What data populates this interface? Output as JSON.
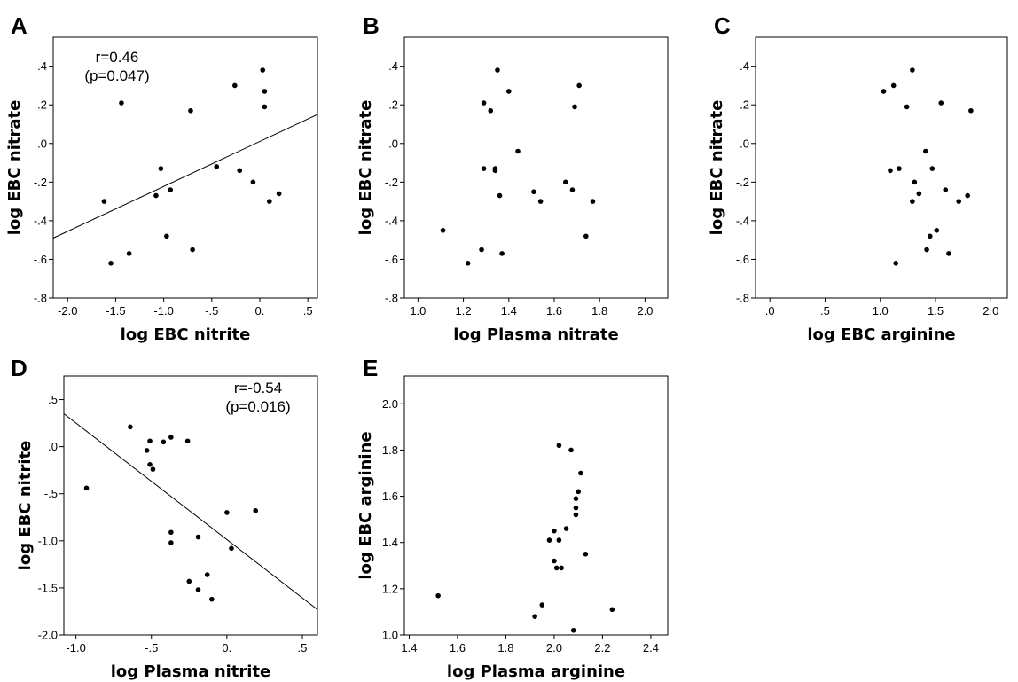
{
  "chart_data": [
    {
      "panel": "A",
      "type": "scatter",
      "xlabel": "log EBC nitrite",
      "ylabel": "log EBC nitrate",
      "xlim": [
        -2.15,
        0.6
      ],
      "ylim": [
        -0.8,
        0.55
      ],
      "xticks": [
        {
          "v": -2.0,
          "label": "-2.0"
        },
        {
          "v": -1.5,
          "label": "-1.5"
        },
        {
          "v": -1.0,
          "label": "-1.0"
        },
        {
          "v": -0.5,
          "label": "-.5"
        },
        {
          "v": 0.0,
          "label": "0."
        },
        {
          "v": 0.5,
          "label": ".5"
        }
      ],
      "yticks": [
        {
          "v": -0.8,
          "label": "-.8"
        },
        {
          "v": -0.6,
          "label": "-.6"
        },
        {
          "v": -0.4,
          "label": "-.4"
        },
        {
          "v": -0.2,
          "label": "-.2"
        },
        {
          "v": 0.0,
          "label": ".0"
        },
        {
          "v": 0.2,
          "label": ".2"
        },
        {
          "v": 0.4,
          "label": ".4"
        }
      ],
      "points": [
        [
          -1.44,
          0.21
        ],
        [
          -1.62,
          -0.3
        ],
        [
          -1.55,
          -0.62
        ],
        [
          -1.36,
          -0.57
        ],
        [
          -1.08,
          -0.27
        ],
        [
          -1.03,
          -0.13
        ],
        [
          -0.97,
          -0.48
        ],
        [
          -0.93,
          -0.24
        ],
        [
          -0.72,
          0.17
        ],
        [
          -0.7,
          -0.55
        ],
        [
          -0.45,
          -0.12
        ],
        [
          -0.26,
          0.3
        ],
        [
          -0.21,
          -0.14
        ],
        [
          -0.07,
          -0.2
        ],
        [
          0.03,
          0.38
        ],
        [
          0.05,
          0.27
        ],
        [
          0.05,
          0.19
        ],
        [
          0.1,
          -0.3
        ],
        [
          0.2,
          -0.26
        ]
      ],
      "fit_line": [
        [
          -2.15,
          -0.49
        ],
        [
          0.6,
          0.15
        ]
      ],
      "annotation": [
        "r=0.46",
        "(p=0.047)"
      ]
    },
    {
      "panel": "B",
      "type": "scatter",
      "xlabel": "log Plasma nitrate",
      "ylabel": "log EBC nitrate",
      "xlim": [
        0.94,
        2.1
      ],
      "ylim": [
        -0.8,
        0.55
      ],
      "xticks": [
        {
          "v": 1.0,
          "label": "1.0"
        },
        {
          "v": 1.2,
          "label": "1.2"
        },
        {
          "v": 1.4,
          "label": "1.4"
        },
        {
          "v": 1.6,
          "label": "1.6"
        },
        {
          "v": 1.8,
          "label": "1.8"
        },
        {
          "v": 2.0,
          "label": "2.0"
        }
      ],
      "yticks": [
        {
          "v": -0.8,
          "label": "-.8"
        },
        {
          "v": -0.6,
          "label": "-.6"
        },
        {
          "v": -0.4,
          "label": "-.4"
        },
        {
          "v": -0.2,
          "label": "-.2"
        },
        {
          "v": 0.0,
          "label": ".0"
        },
        {
          "v": 0.2,
          "label": ".2"
        },
        {
          "v": 0.4,
          "label": ".4"
        }
      ],
      "points": [
        [
          1.11,
          -0.45
        ],
        [
          1.22,
          -0.62
        ],
        [
          1.28,
          -0.55
        ],
        [
          1.29,
          0.21
        ],
        [
          1.29,
          -0.13
        ],
        [
          1.32,
          0.17
        ],
        [
          1.34,
          -0.13
        ],
        [
          1.34,
          -0.14
        ],
        [
          1.35,
          0.38
        ],
        [
          1.36,
          -0.27
        ],
        [
          1.37,
          -0.57
        ],
        [
          1.4,
          0.27
        ],
        [
          1.44,
          -0.04
        ],
        [
          1.51,
          -0.25
        ],
        [
          1.54,
          -0.3
        ],
        [
          1.65,
          -0.2
        ],
        [
          1.68,
          -0.24
        ],
        [
          1.69,
          0.19
        ],
        [
          1.71,
          0.3
        ],
        [
          1.74,
          -0.48
        ],
        [
          1.77,
          -0.3
        ]
      ]
    },
    {
      "panel": "C",
      "type": "scatter",
      "xlabel": "log EBC arginine",
      "ylabel": "log EBC nitrate",
      "xlim": [
        -0.13,
        2.15
      ],
      "ylim": [
        -0.8,
        0.55
      ],
      "xticks": [
        {
          "v": 0.0,
          "label": ".0"
        },
        {
          "v": 0.5,
          "label": ".5"
        },
        {
          "v": 1.0,
          "label": "1.0"
        },
        {
          "v": 1.5,
          "label": "1.5"
        },
        {
          "v": 2.0,
          "label": "2.0"
        }
      ],
      "yticks": [
        {
          "v": -0.8,
          "label": "-.8"
        },
        {
          "v": -0.6,
          "label": "-.6"
        },
        {
          "v": -0.4,
          "label": "-.4"
        },
        {
          "v": -0.2,
          "label": "-.2"
        },
        {
          "v": 0.0,
          "label": ".0"
        },
        {
          "v": 0.2,
          "label": ".2"
        },
        {
          "v": 0.4,
          "label": ".4"
        }
      ],
      "points": [
        [
          1.03,
          0.27
        ],
        [
          1.09,
          -0.14
        ],
        [
          1.12,
          0.3
        ],
        [
          1.14,
          -0.62
        ],
        [
          1.17,
          -0.13
        ],
        [
          1.24,
          0.19
        ],
        [
          1.29,
          0.38
        ],
        [
          1.29,
          -0.3
        ],
        [
          1.31,
          -0.2
        ],
        [
          1.35,
          -0.26
        ],
        [
          1.41,
          -0.04
        ],
        [
          1.42,
          -0.55
        ],
        [
          1.45,
          -0.48
        ],
        [
          1.47,
          -0.13
        ],
        [
          1.51,
          -0.45
        ],
        [
          1.55,
          0.21
        ],
        [
          1.59,
          -0.24
        ],
        [
          1.62,
          -0.57
        ],
        [
          1.71,
          -0.3
        ],
        [
          1.79,
          -0.27
        ],
        [
          1.82,
          0.17
        ]
      ]
    },
    {
      "panel": "D",
      "type": "scatter",
      "xlabel": "log Plasma nitrite",
      "ylabel": "log EBC nitrite",
      "xlim": [
        -1.08,
        0.6
      ],
      "ylim": [
        -2.0,
        0.75
      ],
      "xticks": [
        {
          "v": -1.0,
          "label": "-1.0"
        },
        {
          "v": -0.5,
          "label": "-.5"
        },
        {
          "v": 0.0,
          "label": "0."
        },
        {
          "v": 0.5,
          "label": ".5"
        }
      ],
      "yticks": [
        {
          "v": -2.0,
          "label": "-2.0"
        },
        {
          "v": -1.5,
          "label": "-1.5"
        },
        {
          "v": -1.0,
          "label": "-1.0"
        },
        {
          "v": -0.5,
          "label": "-.5"
        },
        {
          "v": 0.0,
          "label": ".0"
        },
        {
          "v": 0.5,
          "label": ".5"
        }
      ],
      "points": [
        [
          -0.93,
          -0.44
        ],
        [
          -0.64,
          0.21
        ],
        [
          -0.53,
          -0.04
        ],
        [
          -0.51,
          0.06
        ],
        [
          -0.51,
          -0.19
        ],
        [
          -0.49,
          -0.24
        ],
        [
          -0.42,
          0.05
        ],
        [
          -0.37,
          0.1
        ],
        [
          -0.37,
          -0.91
        ],
        [
          -0.37,
          -1.02
        ],
        [
          -0.26,
          0.06
        ],
        [
          -0.25,
          -1.43
        ],
        [
          -0.19,
          -0.96
        ],
        [
          -0.19,
          -1.52
        ],
        [
          -0.13,
          -1.36
        ],
        [
          -0.1,
          -1.62
        ],
        [
          0.0,
          -0.7
        ],
        [
          0.03,
          -1.08
        ],
        [
          0.19,
          -0.68
        ]
      ],
      "fit_line": [
        [
          -1.08,
          0.35
        ],
        [
          0.6,
          -1.73
        ]
      ],
      "annotation": [
        "r=-0.54",
        "(p=0.016)"
      ]
    },
    {
      "panel": "E",
      "type": "scatter",
      "xlabel": "log Plasma arginine",
      "ylabel": "log EBC arginine",
      "xlim": [
        1.38,
        2.47
      ],
      "ylim": [
        1.0,
        2.12
      ],
      "xticks": [
        {
          "v": 1.4,
          "label": "1.4"
        },
        {
          "v": 1.6,
          "label": "1.6"
        },
        {
          "v": 1.8,
          "label": "1.8"
        },
        {
          "v": 2.0,
          "label": "2.0"
        },
        {
          "v": 2.2,
          "label": "2.2"
        },
        {
          "v": 2.4,
          "label": "2.4"
        }
      ],
      "yticks": [
        {
          "v": 1.0,
          "label": "1.0"
        },
        {
          "v": 1.2,
          "label": "1.2"
        },
        {
          "v": 1.4,
          "label": "1.4"
        },
        {
          "v": 1.6,
          "label": "1.6"
        },
        {
          "v": 1.8,
          "label": "1.8"
        },
        {
          "v": 2.0,
          "label": "2.0"
        }
      ],
      "points": [
        [
          1.52,
          1.17
        ],
        [
          1.92,
          1.08
        ],
        [
          1.95,
          1.13
        ],
        [
          1.98,
          1.41
        ],
        [
          2.0,
          1.45
        ],
        [
          2.0,
          1.32
        ],
        [
          2.01,
          1.29
        ],
        [
          2.02,
          1.82
        ],
        [
          2.02,
          1.41
        ],
        [
          2.03,
          1.29
        ],
        [
          2.05,
          1.46
        ],
        [
          2.07,
          1.8
        ],
        [
          2.08,
          1.02
        ],
        [
          2.09,
          1.59
        ],
        [
          2.09,
          1.55
        ],
        [
          2.09,
          1.52
        ],
        [
          2.1,
          1.62
        ],
        [
          2.11,
          1.7
        ],
        [
          2.13,
          1.35
        ],
        [
          2.24,
          1.11
        ]
      ]
    }
  ]
}
